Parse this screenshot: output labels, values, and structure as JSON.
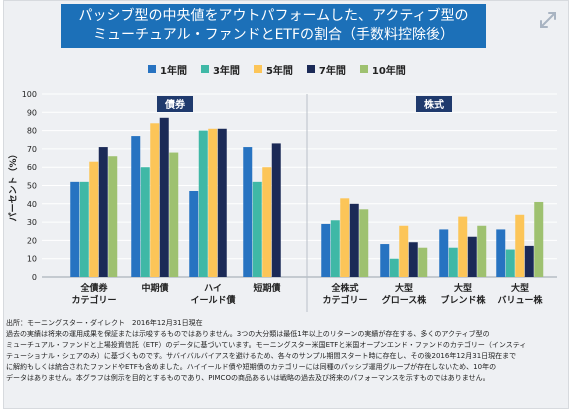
{
  "title": {
    "line1": "パッシブ型の中央値をアウトパフォームした、アクティブ型の",
    "line2": "ミューチュアル・ファンドとETFの割合（手数料控除後）"
  },
  "icons": {
    "expand": "expand-icon"
  },
  "colors": {
    "title_bg": "#1c70b8",
    "panel_label_bg": "#1f3a6d",
    "series": [
      "#2773c1",
      "#3fb8a6",
      "#fcc558",
      "#1b2a57",
      "#9ec170"
    ]
  },
  "chart_data": {
    "type": "bar",
    "ylabel": "パーセント（%）",
    "ylim": [
      0,
      100
    ],
    "yticks": [
      0,
      10,
      20,
      30,
      40,
      50,
      60,
      70,
      80,
      90,
      100
    ],
    "grid": true,
    "legend_position": "top",
    "series_names": [
      "1年間",
      "3年間",
      "5年間",
      "7年間",
      "10年間"
    ],
    "panels": [
      {
        "label": "債券",
        "groups": [
          {
            "label": [
              "全債券",
              "カテゴリー"
            ],
            "values": [
              52,
              52,
              63,
              71,
              66
            ]
          },
          {
            "label": [
              "中期債"
            ],
            "values": [
              77,
              60,
              84,
              87,
              68
            ]
          },
          {
            "label": [
              "ハイ",
              "イールド債"
            ],
            "values": [
              47,
              80,
              81,
              81,
              null
            ]
          },
          {
            "label": [
              "短期債"
            ],
            "values": [
              71,
              52,
              60,
              73,
              null
            ]
          }
        ]
      },
      {
        "label": "株式",
        "groups": [
          {
            "label": [
              "全株式",
              "カテゴリー"
            ],
            "values": [
              29,
              31,
              43,
              40,
              37
            ]
          },
          {
            "label": [
              "大型",
              "グロース株"
            ],
            "values": [
              18,
              10,
              28,
              19,
              16
            ]
          },
          {
            "label": [
              "大型",
              "ブレンド株"
            ],
            "values": [
              26,
              16,
              33,
              22,
              28
            ]
          },
          {
            "label": [
              "大型",
              "バリュー株"
            ],
            "values": [
              26,
              15,
              34,
              17,
              41
            ]
          }
        ]
      }
    ]
  },
  "notes": {
    "line1": "出所：モーニングスター・ダイレクト　2016年12月31日現在",
    "line2": "過去の実績は将来の運用成果を保証または示唆するものではありません。3つの大分類は最低1年以上のリターンの実績が存在する、多くのアクティブ型の",
    "line3": "ミューチュアル・ファンドと上場投資信託（ETF）のデータに基づいています。モーニングスター米国ETFと米国オープンエンド・ファンドのカテゴリー（インスティ",
    "line4": "テューショナル・シェアのみ）に基づくものです。サバイバルバイアスを避けるため、各々のサンプル期間スタート時に存在し、その後2016年12月31日現在まで",
    "line5": "に解約もしくは統合されたファンドやETFも含めました。ハイイールド債や短期債のカテゴリーには同種のパッシブ運用グループが存在しないため、10年の",
    "line6": "データはありません。本グラフは例示を目的とするものであり、PIMCOの商品あるいは戦略の過去及び将来のパフォーマンスを示すものではありません。"
  }
}
